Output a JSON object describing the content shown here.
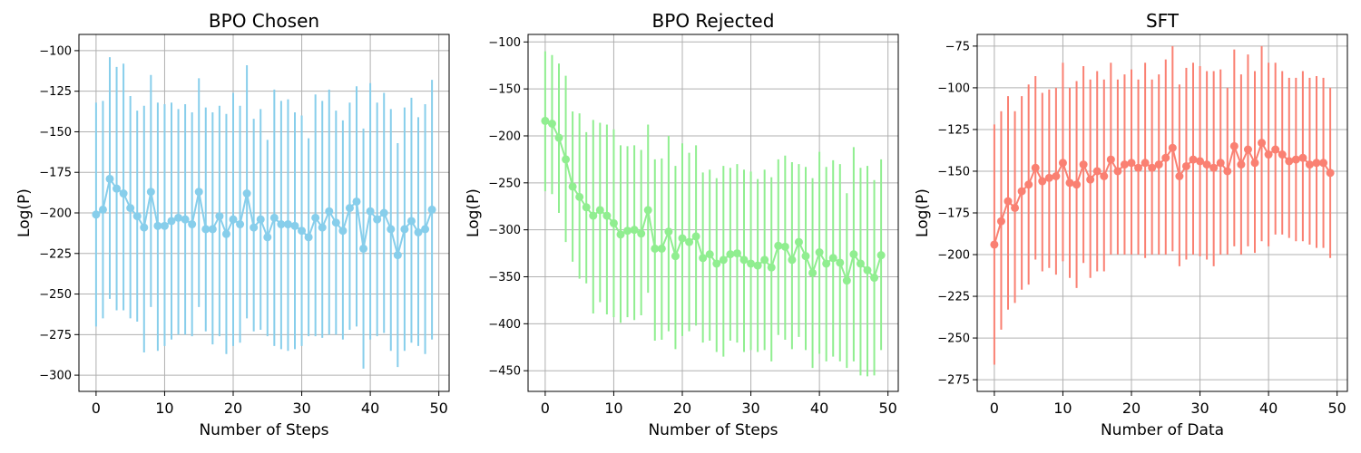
{
  "chart_data": [
    {
      "type": "errorbar-line",
      "title": "BPO Chosen",
      "xlabel": "Number of Steps",
      "ylabel": "Log(P)",
      "xlim": [
        -2.5,
        51.5
      ],
      "ylim": [
        -310,
        -90
      ],
      "xticks": [
        0,
        10,
        20,
        30,
        40,
        50
      ],
      "yticks": [
        -300,
        -275,
        -250,
        -225,
        -200,
        -175,
        -150,
        -125,
        -100
      ],
      "grid": true,
      "color": "#87ceeb",
      "x": [
        0,
        1,
        2,
        3,
        4,
        5,
        6,
        7,
        8,
        9,
        10,
        11,
        12,
        13,
        14,
        15,
        16,
        17,
        18,
        19,
        20,
        21,
        22,
        23,
        24,
        25,
        26,
        27,
        28,
        29,
        30,
        31,
        32,
        33,
        34,
        35,
        36,
        37,
        38,
        39,
        40,
        41,
        42,
        43,
        44,
        45,
        46,
        47,
        48,
        49
      ],
      "y": [
        -201,
        -198,
        -179,
        -185,
        -188,
        -197,
        -202,
        -209,
        -187,
        -208,
        -208,
        -205,
        -203,
        -204,
        -207,
        -187,
        -210,
        -210,
        -202,
        -213,
        -204,
        -207,
        -188,
        -209,
        -204,
        -215,
        -203,
        -207,
        -207,
        -208,
        -211,
        -215,
        -203,
        -209,
        -199,
        -206,
        -211,
        -197,
        -193,
        -222,
        -199,
        -204,
        -200,
        -210,
        -226,
        -210,
        -205,
        -212,
        -210,
        -198
      ],
      "err_low": [
        -270,
        -265,
        -253,
        -260,
        -260,
        -265,
        -267,
        -286,
        -258,
        -285,
        -282,
        -278,
        -275,
        -275,
        -276,
        -258,
        -273,
        -281,
        -276,
        -287,
        -282,
        -280,
        -265,
        -273,
        -272,
        -276,
        -282,
        -284,
        -285,
        -284,
        -282,
        -276,
        -276,
        -277,
        -275,
        -275,
        -278,
        -272,
        -270,
        -296,
        -278,
        -276,
        -274,
        -285,
        -295,
        -285,
        -280,
        -282,
        -287,
        -278
      ],
      "err_high": [
        -132,
        -131,
        -104,
        -110,
        -108,
        -128,
        -137,
        -134,
        -115,
        -132,
        -133,
        -132,
        -136,
        -133,
        -138,
        -117,
        -135,
        -138,
        -134,
        -139,
        -126,
        -134,
        -109,
        -142,
        -136,
        -155,
        -124,
        -131,
        -130,
        -138,
        -140,
        -154,
        -127,
        -131,
        -124,
        -137,
        -143,
        -132,
        -122,
        -148,
        -120,
        -132,
        -126,
        -136,
        -157,
        -135,
        -129,
        -141,
        -133,
        -118
      ]
    },
    {
      "type": "errorbar-line",
      "title": "BPO Rejected",
      "xlabel": "Number of Steps",
      "ylabel": "Log(P)",
      "xlim": [
        -2.5,
        51.5
      ],
      "ylim": [
        -472,
        -92
      ],
      "xticks": [
        0,
        10,
        20,
        30,
        40,
        50
      ],
      "yticks": [
        -450,
        -400,
        -350,
        -300,
        -250,
        -200,
        -150,
        -100
      ],
      "grid": true,
      "color": "#90ee90",
      "x": [
        0,
        1,
        2,
        3,
        4,
        5,
        6,
        7,
        8,
        9,
        10,
        11,
        12,
        13,
        14,
        15,
        16,
        17,
        18,
        19,
        20,
        21,
        22,
        23,
        24,
        25,
        26,
        27,
        28,
        29,
        30,
        31,
        32,
        33,
        34,
        35,
        36,
        37,
        38,
        39,
        40,
        41,
        42,
        43,
        44,
        45,
        46,
        47,
        48,
        49
      ],
      "y": [
        -184,
        -187,
        -202,
        -225,
        -254,
        -265,
        -276,
        -285,
        -279,
        -285,
        -293,
        -305,
        -301,
        -300,
        -304,
        -279,
        -320,
        -320,
        -302,
        -328,
        -309,
        -313,
        -307,
        -330,
        -326,
        -336,
        -332,
        -326,
        -325,
        -332,
        -336,
        -338,
        -332,
        -340,
        -317,
        -318,
        -332,
        -313,
        -328,
        -346,
        -324,
        -336,
        -330,
        -335,
        -354,
        -326,
        -336,
        -343,
        -351,
        -327
      ],
      "err_low": [
        -259,
        -262,
        -282,
        -313,
        -334,
        -352,
        -357,
        -389,
        -377,
        -390,
        -393,
        -399,
        -393,
        -396,
        -391,
        -367,
        -418,
        -417,
        -408,
        -427,
        -413,
        -408,
        -402,
        -420,
        -418,
        -430,
        -435,
        -418,
        -420,
        -430,
        -428,
        -430,
        -428,
        -440,
        -412,
        -417,
        -427,
        -414,
        -428,
        -447,
        -432,
        -440,
        -435,
        -440,
        -447,
        -440,
        -455,
        -456,
        -455,
        -428
      ],
      "err_high": [
        -110,
        -114,
        -123,
        -136,
        -174,
        -176,
        -196,
        -183,
        -186,
        -188,
        -193,
        -210,
        -211,
        -210,
        -215,
        -188,
        -225,
        -224,
        -200,
        -232,
        -208,
        -218,
        -210,
        -239,
        -236,
        -245,
        -232,
        -234,
        -230,
        -236,
        -238,
        -246,
        -236,
        -244,
        -225,
        -221,
        -228,
        -230,
        -233,
        -245,
        -217,
        -233,
        -226,
        -230,
        -261,
        -212,
        -234,
        -232,
        -247,
        -225
      ]
    },
    {
      "type": "errorbar-line",
      "title": "SFT",
      "xlabel": "Number of Data",
      "ylabel": "Log(P)",
      "xlim": [
        -2.5,
        51.5
      ],
      "ylim": [
        -282,
        -68
      ],
      "xticks": [
        0,
        10,
        20,
        30,
        40,
        50
      ],
      "yticks": [
        -275,
        -250,
        -225,
        -200,
        -175,
        -150,
        -125,
        -100,
        -75
      ],
      "grid": true,
      "color": "#fa8072",
      "x": [
        0,
        1,
        2,
        3,
        4,
        5,
        6,
        7,
        8,
        9,
        10,
        11,
        12,
        13,
        14,
        15,
        16,
        17,
        18,
        19,
        20,
        21,
        22,
        23,
        24,
        25,
        26,
        27,
        28,
        29,
        30,
        31,
        32,
        33,
        34,
        35,
        36,
        37,
        38,
        39,
        40,
        41,
        42,
        43,
        44,
        45,
        46,
        47,
        48,
        49
      ],
      "y": [
        -194,
        -180,
        -168,
        -172,
        -162,
        -158,
        -148,
        -156,
        -154,
        -153,
        -145,
        -157,
        -158,
        -146,
        -155,
        -150,
        -153,
        -143,
        -150,
        -146,
        -145,
        -148,
        -145,
        -148,
        -146,
        -142,
        -136,
        -153,
        -147,
        -143,
        -144,
        -146,
        -148,
        -145,
        -150,
        -135,
        -146,
        -137,
        -145,
        -133,
        -140,
        -137,
        -140,
        -144,
        -143,
        -142,
        -146,
        -145,
        -145,
        -151
      ],
      "err_low": [
        -266,
        -245,
        -233,
        -229,
        -221,
        -218,
        -203,
        -210,
        -208,
        -212,
        -204,
        -214,
        -220,
        -205,
        -214,
        -210,
        -210,
        -200,
        -200,
        -200,
        -200,
        -200,
        -202,
        -200,
        -200,
        -200,
        -198,
        -207,
        -203,
        -200,
        -201,
        -203,
        -207,
        -200,
        -200,
        -195,
        -200,
        -195,
        -199,
        -192,
        -195,
        -188,
        -188,
        -190,
        -192,
        -192,
        -194,
        -196,
        -196,
        -202
      ],
      "err_high": [
        -122,
        -114,
        -105,
        -114,
        -105,
        -98,
        -93,
        -103,
        -101,
        -100,
        -85,
        -100,
        -96,
        -87,
        -95,
        -90,
        -95,
        -85,
        -95,
        -92,
        -89,
        -95,
        -85,
        -95,
        -92,
        -83,
        -75,
        -98,
        -88,
        -85,
        -87,
        -90,
        -90,
        -89,
        -100,
        -77,
        -92,
        -80,
        -90,
        -75,
        -85,
        -85,
        -90,
        -94,
        -94,
        -90,
        -94,
        -93,
        -94,
        -100
      ]
    }
  ]
}
